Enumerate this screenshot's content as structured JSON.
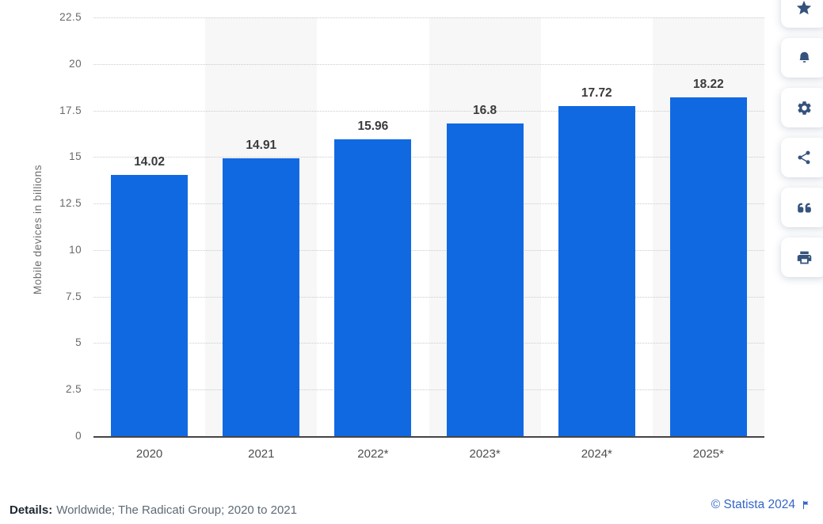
{
  "chart_data": {
    "type": "bar",
    "title": "",
    "categories": [
      "2020",
      "2021",
      "2022*",
      "2023*",
      "2024*",
      "2025*"
    ],
    "values": [
      14.02,
      14.91,
      15.96,
      16.8,
      17.72,
      18.22
    ],
    "value_labels": [
      "14.02",
      "14.91",
      "15.96",
      "16.8",
      "17.72",
      "18.22"
    ],
    "xlabel": "",
    "ylabel": "Mobile devices in billions",
    "ylim": [
      0,
      22.5
    ],
    "ytick_step": 2.5,
    "ytick_labels": [
      "0",
      "2.5",
      "5",
      "7.5",
      "10",
      "12.5",
      "15",
      "17.5",
      "20",
      "22.5"
    ],
    "grid": "horizontal-dotted",
    "legend": "none",
    "alternating_column_bands": true,
    "colors": {
      "bar": "#1169e2",
      "band": "#f7f7f7",
      "gridline": "#cbcbcb",
      "axis_line": "#454545",
      "value_label": "#3b3b3b",
      "tick_label": "#696969",
      "x_label": "#4e4e4e"
    }
  },
  "toolbar": {
    "icon_color": "#35537c",
    "buttons": [
      {
        "name": "favorite",
        "icon": "star-icon"
      },
      {
        "name": "notifications",
        "icon": "bell-icon"
      },
      {
        "name": "settings",
        "icon": "gear-icon"
      },
      {
        "name": "share",
        "icon": "share-icon"
      },
      {
        "name": "cite",
        "icon": "quote-icon"
      },
      {
        "name": "print",
        "icon": "printer-icon"
      }
    ]
  },
  "footer": {
    "details_label": "Details:",
    "details_text": "Worldwide; The Radicati Group; 2020 to 2021",
    "copyright": "© Statista 2024",
    "link_color": "#3465c8"
  }
}
